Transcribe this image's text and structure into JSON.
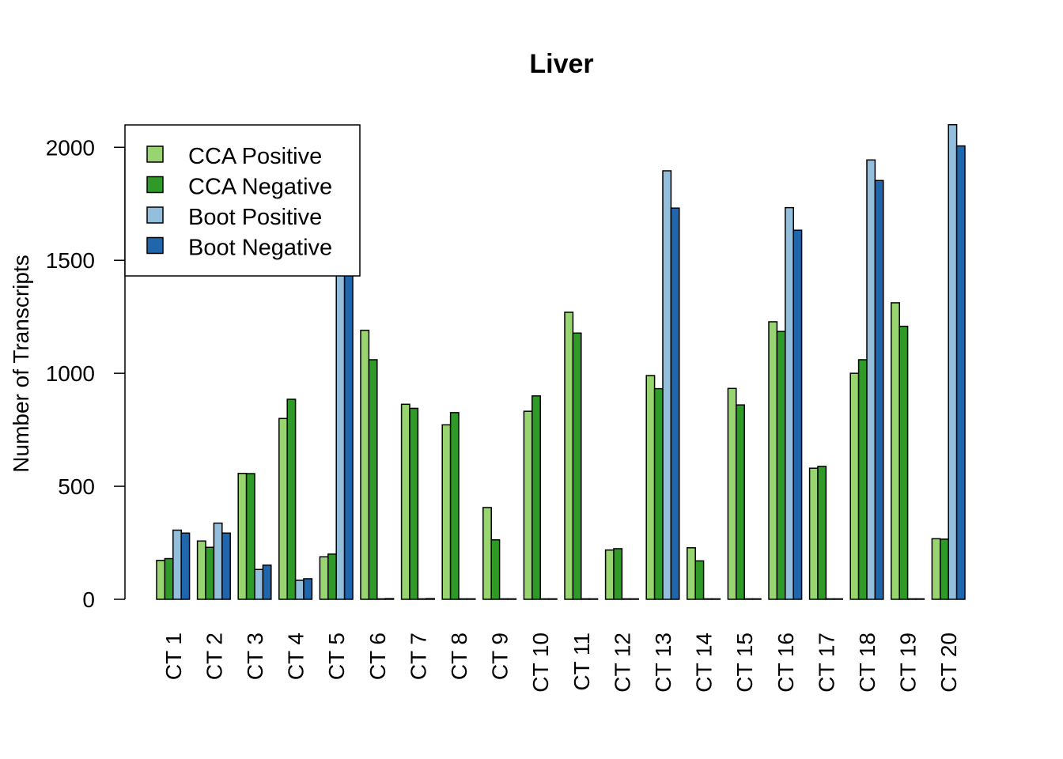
{
  "colors": {
    "cca_positive": "#98d46f",
    "cca_negative": "#2f9a27",
    "boot_positive": "#93bfdd",
    "boot_negative": "#1f66ad"
  },
  "chart_data": {
    "type": "bar",
    "title": "Liver",
    "xlabel": "",
    "ylabel": "Number of Transcripts",
    "ylim": [
      0,
      2100
    ],
    "yticks": [
      0,
      500,
      1000,
      1500,
      2000
    ],
    "yticks_labels": [
      "0",
      "500",
      "1000",
      "1500",
      "2000"
    ],
    "grid": false,
    "legend_position": "top-left",
    "categories": [
      "CT 1",
      "CT 2",
      "CT 3",
      "CT 4",
      "CT 5",
      "CT 6",
      "CT 7",
      "CT 8",
      "CT 9",
      "CT 10",
      "CT 11",
      "CT 12",
      "CT 13",
      "CT 14",
      "CT 15",
      "CT 16",
      "CT 17",
      "CT 18",
      "CT 19",
      "CT 20"
    ],
    "series": [
      {
        "name": "CCA Positive",
        "color_key": "cca_positive",
        "values": [
          172,
          258,
          557,
          800,
          188,
          1190,
          863,
          772,
          406,
          832,
          1270,
          218,
          990,
          228,
          933,
          1228,
          580,
          1000,
          1312,
          268
        ]
      },
      {
        "name": "CCA Negative",
        "color_key": "cca_negative",
        "values": [
          180,
          230,
          556,
          885,
          200,
          1060,
          845,
          826,
          263,
          900,
          1178,
          224,
          932,
          170,
          860,
          1185,
          588,
          1060,
          1208,
          266
        ]
      },
      {
        "name": "Boot Positive",
        "color_key": "boot_positive",
        "values": [
          306,
          337,
          132,
          84,
          1640,
          2,
          2,
          2,
          2,
          2,
          2,
          2,
          1896,
          2,
          2,
          1733,
          2,
          1944,
          2,
          2100
        ]
      },
      {
        "name": "Boot Negative",
        "color_key": "boot_negative",
        "values": [
          293,
          293,
          151,
          91,
          1600,
          3,
          3,
          2,
          2,
          2,
          2,
          2,
          1731,
          2,
          2,
          1633,
          2,
          1853,
          2,
          2006
        ]
      }
    ]
  }
}
